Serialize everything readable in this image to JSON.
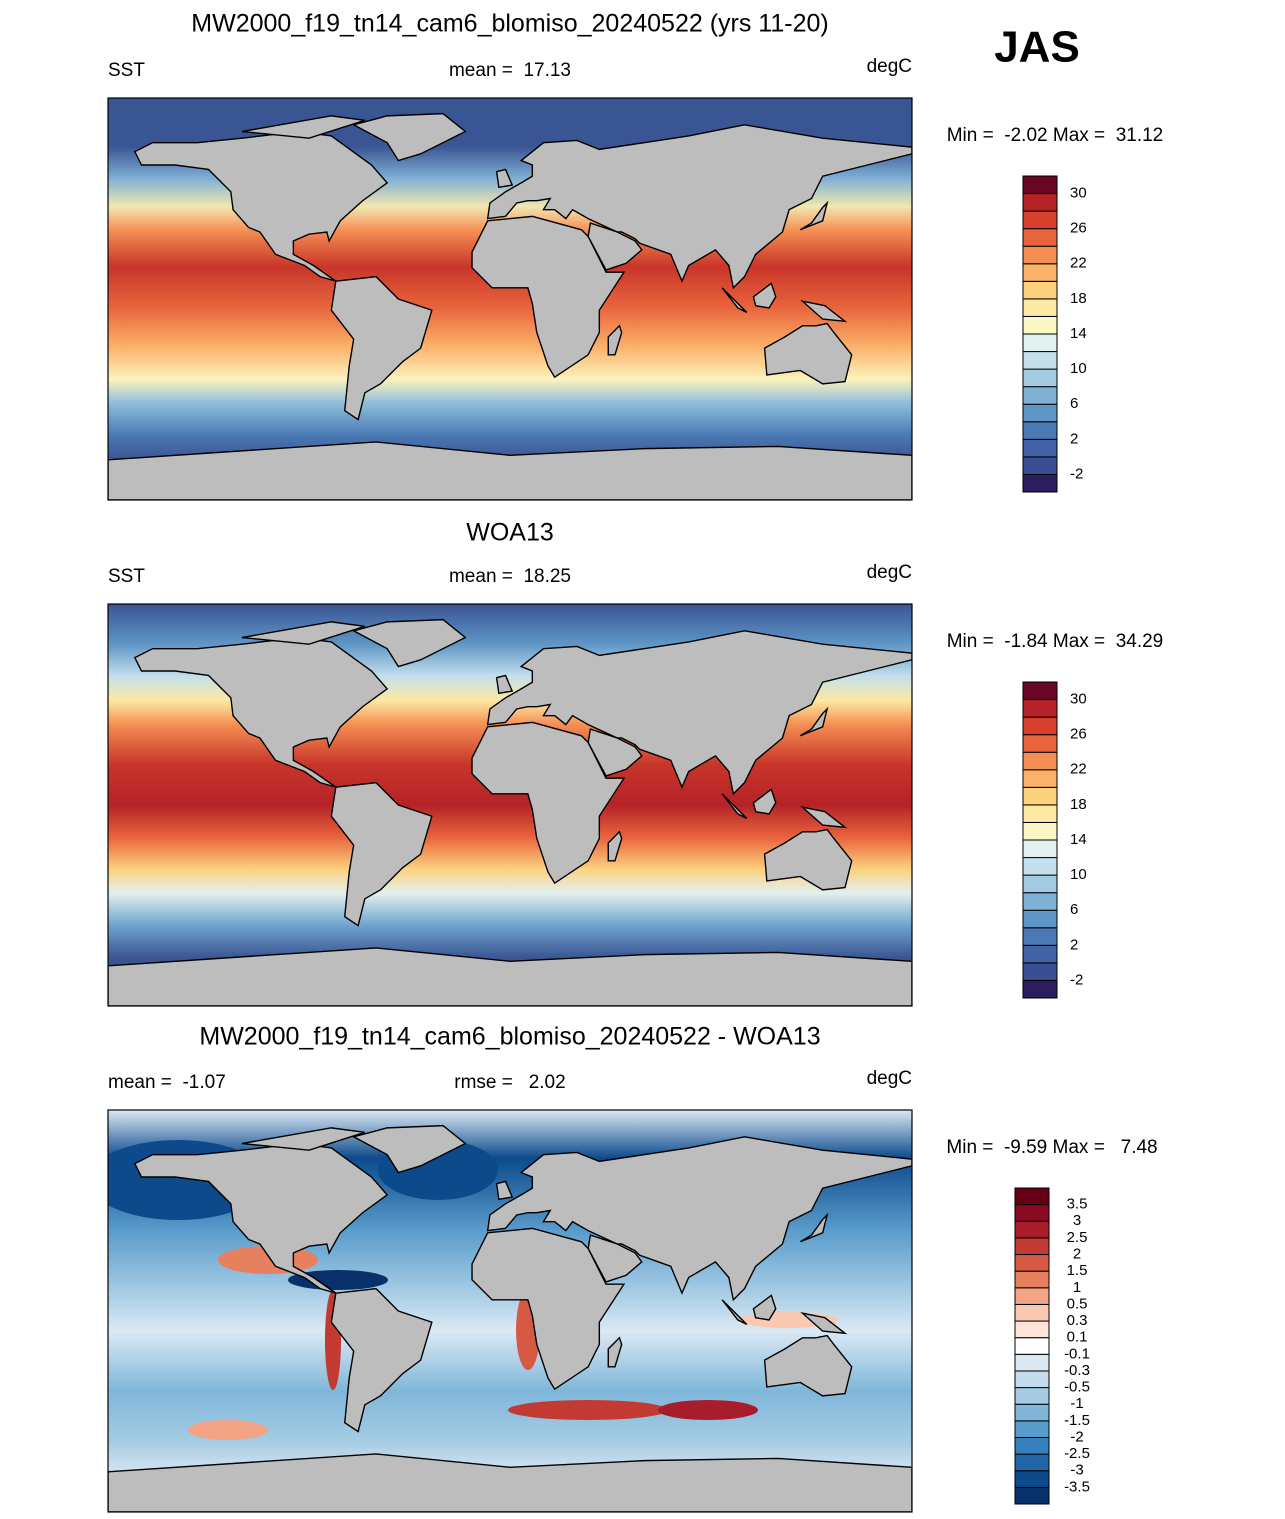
{
  "season": "JAS",
  "panels": [
    {
      "title": "MW2000_f19_tn14_cam6_blomiso_20240522 (yrs 11-20)",
      "left": "SST",
      "center": "mean =  17.13",
      "right": "degC",
      "range": "Min =  -2.02 Max =  31.12",
      "colorbar": {
        "labels": [
          "-2",
          "2",
          "6",
          "10",
          "14",
          "18",
          "22",
          "26",
          "30"
        ],
        "colors": [
          "#2c1d5e",
          "#3a4f93",
          "#4162a4",
          "#4a79b4",
          "#5f96c6",
          "#7fb0d5",
          "#a2cbe2",
          "#c3e0ec",
          "#e2f0f0",
          "#fbf8c4",
          "#fde9a1",
          "#fdd27f",
          "#fbb26a",
          "#f58e53",
          "#e8643c",
          "#d7412c",
          "#b52228",
          "#6a0625"
        ]
      }
    },
    {
      "title": "WOA13",
      "left": "SST",
      "center": "mean =  18.25",
      "right": "degC",
      "range": "Min =  -1.84 Max =  34.29",
      "colorbar": {
        "labels": [
          "-2",
          "2",
          "6",
          "10",
          "14",
          "18",
          "22",
          "26",
          "30"
        ],
        "colors": [
          "#2c1d5e",
          "#3a4f93",
          "#4162a4",
          "#4a79b4",
          "#5f96c6",
          "#7fb0d5",
          "#a2cbe2",
          "#c3e0ec",
          "#e2f0f0",
          "#fbf8c4",
          "#fde9a1",
          "#fdd27f",
          "#fbb26a",
          "#f58e53",
          "#e8643c",
          "#d7412c",
          "#b52228",
          "#6a0625"
        ]
      }
    },
    {
      "title": "MW2000_f19_tn14_cam6_blomiso_20240522 - WOA13",
      "left": "mean =  -1.07",
      "center": "rmse =   2.02",
      "right": "degC",
      "range": "Min =  -9.59 Max =   7.48",
      "colorbar": {
        "labels": [
          "-3.5",
          "-3",
          "-2.5",
          "-2",
          "-1.5",
          "-1",
          "-0.5",
          "-0.3",
          "-0.1",
          "0.1",
          "0.3",
          "0.5",
          "1",
          "1.5",
          "2",
          "2.5",
          "3",
          "3.5"
        ],
        "colors": [
          "#08306b",
          "#0d4a8c",
          "#1f65a8",
          "#3681bd",
          "#5a9ccc",
          "#7fb6d9",
          "#a4cbe3",
          "#c2dbed",
          "#dbe9f4",
          "#ffffff",
          "#fde4d6",
          "#fac9b1",
          "#f3a484",
          "#e7805f",
          "#d65a43",
          "#c23a32",
          "#a71d2c",
          "#8b0b24",
          "#670015"
        ]
      }
    }
  ]
}
